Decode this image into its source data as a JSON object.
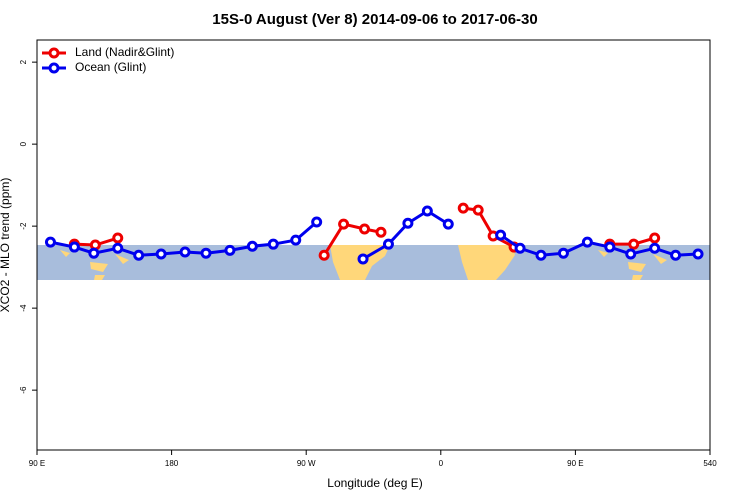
{
  "chart_data": {
    "type": "line",
    "title": "15S-0 August (Ver 8)   2014-09-06 to 2017-06-30",
    "x_label": "Longitude (deg E)",
    "y_label": "XCO2 - MLO trend (ppm)",
    "xlim": [
      90,
      540
    ],
    "ylim": [
      -7.46,
      2.54
    ],
    "xticks": [
      {
        "value": 90,
        "label": "90 E"
      },
      180,
      {
        "value": 270,
        "label": "90 W"
      },
      {
        "value": 360,
        "label": "0"
      },
      {
        "value": 450,
        "label": "90 E"
      },
      540
    ],
    "yticks": [
      2,
      0,
      -2,
      -4,
      -6
    ],
    "legend": "top-left",
    "series": [
      {
        "name": "Land (Nadir&Glint)",
        "color": "#ee0000",
        "x": [
          115,
          129,
          144,
          null,
          282,
          295,
          309,
          320,
          null,
          375,
          385,
          395,
          409,
          null,
          473,
          489,
          503
        ],
        "values": [
          -2.44,
          -2.46,
          -2.29,
          null,
          -2.71,
          -1.95,
          -2.07,
          -2.15,
          null,
          -1.56,
          -1.61,
          -2.24,
          -2.51,
          null,
          -2.44,
          -2.44,
          -2.29
        ]
      },
      {
        "name": "Ocean (Glint)",
        "color": "#0000ee",
        "x": [
          99,
          115,
          128,
          144,
          158,
          173,
          189,
          203,
          219,
          234,
          248,
          263,
          277,
          null,
          308,
          325,
          338,
          351,
          365,
          null,
          400,
          413,
          427,
          442,
          458,
          473,
          487,
          503,
          517,
          532
        ],
        "values": [
          -2.39,
          -2.51,
          -2.66,
          -2.54,
          -2.71,
          -2.68,
          -2.63,
          -2.66,
          -2.59,
          -2.49,
          -2.44,
          -2.34,
          -1.9,
          null,
          -2.8,
          -2.44,
          -1.93,
          -1.63,
          -1.95,
          null,
          -2.22,
          -2.54,
          -2.71,
          -2.66,
          -2.39,
          -2.51,
          -2.68,
          -2.54,
          -2.71,
          -2.68
        ]
      }
    ]
  }
}
